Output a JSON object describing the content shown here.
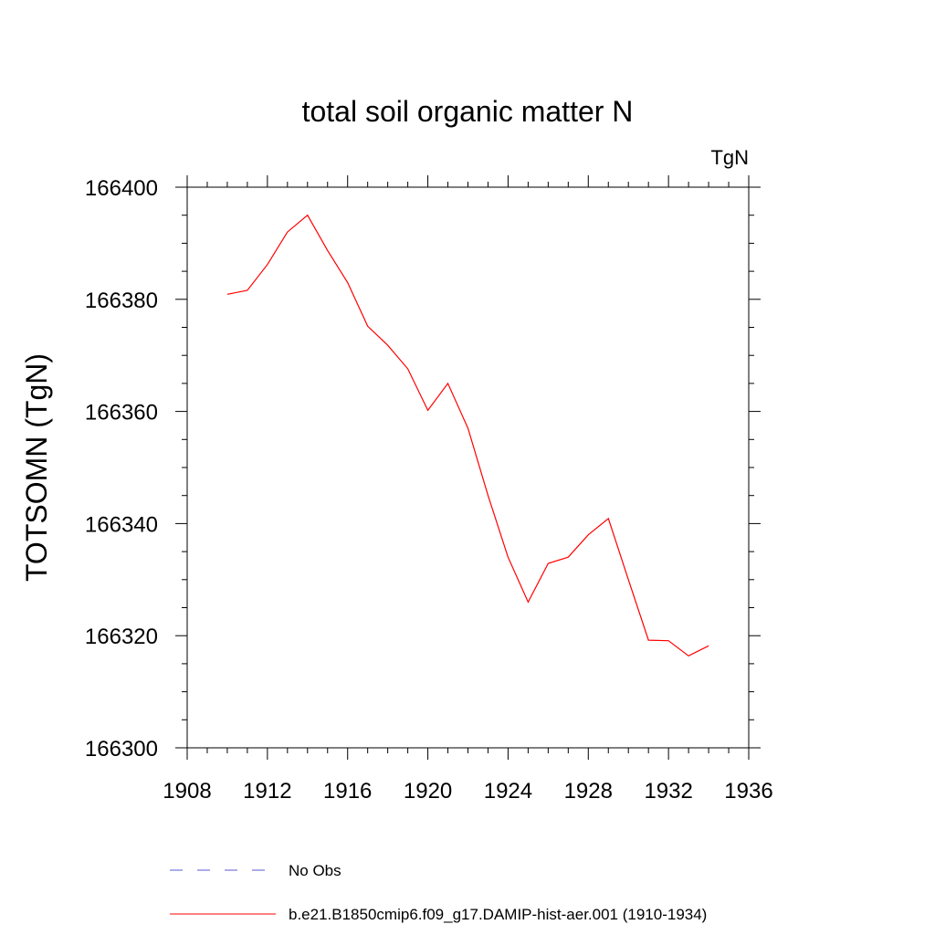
{
  "chart_data": {
    "type": "line",
    "title": "total soil organic matter N",
    "units_label": "TgN",
    "xlabel": "",
    "ylabel": "TOTSOMN  (TgN)",
    "xlim": [
      1908,
      1936
    ],
    "ylim": [
      166300,
      166400
    ],
    "x_ticks": [
      1908,
      1912,
      1916,
      1920,
      1924,
      1928,
      1932,
      1936
    ],
    "y_ticks": [
      166300,
      166320,
      166340,
      166360,
      166380,
      166400
    ],
    "x_tick_labels": [
      "1908",
      "1912",
      "1916",
      "1920",
      "1924",
      "1928",
      "1932",
      "1936"
    ],
    "y_tick_labels": [
      "166300",
      "166320",
      "166340",
      "166360",
      "166380",
      "166400"
    ],
    "grid": false,
    "legend_position": "bottom",
    "series": [
      {
        "name": "No Obs",
        "color": "#5a5ad6",
        "dash": "dashed",
        "x": [],
        "values": []
      },
      {
        "name": "b.e21.B1850cmip6.f09_g17.DAMIP-hist-aer.001 (1910-1934)",
        "color": "#ff0000",
        "dash": "solid",
        "x": [
          1910,
          1911,
          1912,
          1913,
          1914,
          1915,
          1916,
          1917,
          1918,
          1919,
          1920,
          1921,
          1922,
          1923,
          1924,
          1925,
          1926,
          1927,
          1928,
          1929,
          1930,
          1931,
          1932,
          1933,
          1934
        ],
        "values": [
          166380.9,
          166381.6,
          166386.2,
          166392.0,
          166395.0,
          166388.7,
          166383.0,
          166375.2,
          166371.8,
          166367.6,
          166360.2,
          166365.0,
          166357.0,
          166345.0,
          166334.0,
          166326.0,
          166332.9,
          166334.0,
          166338.0,
          166340.9,
          166330.0,
          166319.2,
          166319.1,
          166316.4,
          166318.2
        ]
      }
    ]
  }
}
